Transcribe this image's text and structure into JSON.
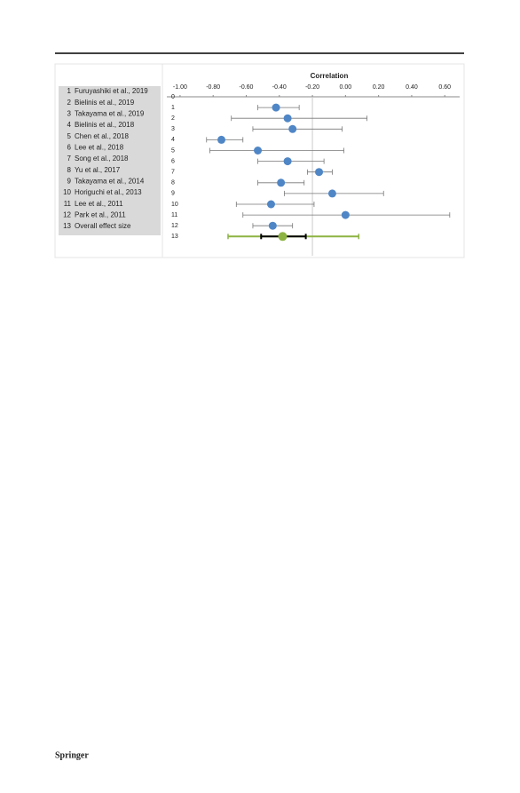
{
  "chart_data": {
    "type": "forest",
    "title": "Correlation",
    "categories": [
      "Furuyashiki et al., 2019",
      "Bielinis et al., 2019",
      "Takayama et al., 2019",
      "Bielinis et al., 2018",
      "Chen et al., 2018",
      "Lee et al., 2018",
      "Song et al., 2018",
      "Yu et al., 2017",
      "Takayama et al., 2014",
      "Horiguchi et al., 2013",
      "Lee et al., 2011",
      "Park et al., 2011",
      "Overall effect size"
    ],
    "values": [
      -0.42,
      -0.35,
      -0.32,
      -0.75,
      -0.53,
      -0.35,
      -0.16,
      -0.39,
      -0.08,
      -0.45,
      0.0,
      -0.44,
      -0.38
    ],
    "lower": [
      -0.53,
      -0.69,
      -0.56,
      -0.84,
      -0.82,
      -0.53,
      -0.23,
      -0.53,
      -0.37,
      -0.66,
      -0.62,
      -0.56,
      -0.51
    ],
    "upper": [
      -0.28,
      0.13,
      -0.02,
      -0.62,
      -0.01,
      -0.13,
      -0.08,
      -0.25,
      0.23,
      -0.19,
      0.63,
      -0.32,
      -0.24
    ],
    "overall_interval": {
      "lower": -0.71,
      "upper": 0.08
    },
    "color": "#4f86c6",
    "overall_color": "#8db443",
    "reference": -0.2,
    "xlim": [
      -1.08,
      0.69
    ],
    "xticks": [
      {
        "value": -1,
        "label": "-1.00"
      },
      {
        "value": -0.8,
        "label": "-0.80"
      },
      {
        "value": -0.6,
        "label": "-0.60"
      },
      {
        "value": -0.4,
        "label": "-0.40"
      },
      {
        "value": -0.2,
        "label": "-0.20"
      },
      {
        "value": 0,
        "label": "0.00"
      },
      {
        "value": 0.2,
        "label": "0.20"
      },
      {
        "value": 0.4,
        "label": "0.40"
      },
      {
        "value": 0.6,
        "label": "0.60"
      }
    ],
    "yticks": [
      0,
      1,
      2,
      3,
      4,
      5,
      6,
      7,
      8,
      9,
      10,
      11,
      12,
      13
    ]
  },
  "footer": "Springer"
}
